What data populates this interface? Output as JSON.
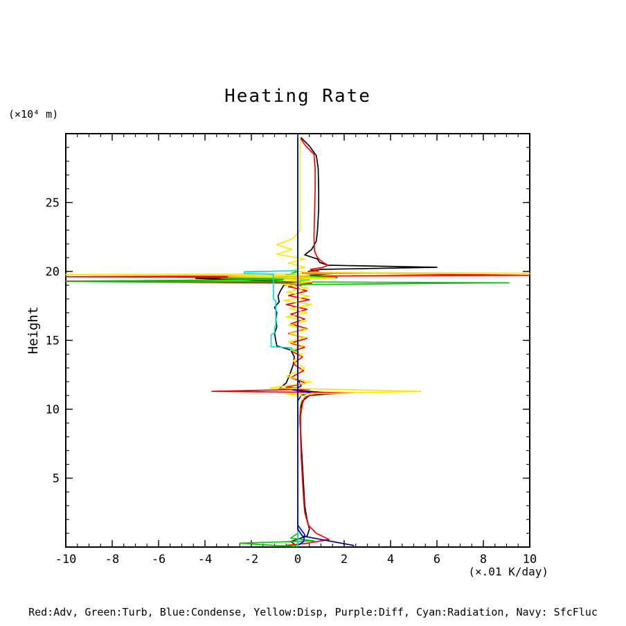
{
  "chart": {
    "title": "Heating Rate",
    "y_axis_units": "(×10⁴ m)",
    "y_axis_label": "Height",
    "x_axis_units": "(×.01 K/day)",
    "legend_text": "Red:Adv, Green:Turb, Blue:Condense, Yellow:Disp, Purple:Diff, Cyan:Radiation, Navy: SfcFluc"
  },
  "chart_data": {
    "type": "line",
    "title": "Heating Rate",
    "xlabel": "(×.01 K/day)",
    "ylabel": "Height (×10⁴ m)",
    "xlim": [
      -10,
      10
    ],
    "ylim": [
      0,
      30
    ],
    "x_major_ticks": [
      -10,
      -8,
      -6,
      -4,
      -2,
      0,
      2,
      4,
      6,
      8,
      10
    ],
    "x_minor_step": 0.5,
    "y_major_ticks": [
      5,
      10,
      15,
      20,
      25
    ],
    "y_minor_step": 1,
    "grid": false,
    "legend_position": "bottom-text-line",
    "note": "vertical profile plot: x = heating rate value, y = height",
    "series": [
      {
        "name": "black-unlabeled",
        "color": "#000000",
        "points": [
          [
            0.15,
            29.7
          ],
          [
            0.5,
            29.1
          ],
          [
            0.8,
            28.4
          ],
          [
            0.88,
            27.5
          ],
          [
            0.9,
            26
          ],
          [
            0.9,
            24.5
          ],
          [
            0.85,
            23
          ],
          [
            0.8,
            22.2
          ],
          [
            0.6,
            21.6
          ],
          [
            0.3,
            21.2
          ],
          [
            0.85,
            20.9
          ],
          [
            0.95,
            20.65
          ],
          [
            1.3,
            20.45
          ],
          [
            6.0,
            20.3
          ],
          [
            1.0,
            20.15
          ],
          [
            0.45,
            20.0
          ],
          [
            1.6,
            19.85
          ],
          [
            0.3,
            19.7
          ],
          [
            -4.4,
            19.5
          ],
          [
            -2.0,
            19.35
          ],
          [
            0.3,
            19.2
          ],
          [
            -0.6,
            19.0
          ],
          [
            -0.75,
            18.6
          ],
          [
            -0.85,
            18.2
          ],
          [
            -0.8,
            17.8
          ],
          [
            -1.0,
            17.4
          ],
          [
            -0.9,
            17.0
          ],
          [
            -0.95,
            16.5
          ],
          [
            -0.9,
            16.0
          ],
          [
            -1.0,
            15.5
          ],
          [
            -0.95,
            15.0
          ],
          [
            -0.9,
            14.6
          ],
          [
            -0.3,
            14.3
          ],
          [
            -0.15,
            13.8
          ],
          [
            -0.2,
            13.2
          ],
          [
            -0.35,
            12.5
          ],
          [
            -0.5,
            11.9
          ],
          [
            -0.8,
            11.5
          ],
          [
            0.5,
            11.3
          ],
          [
            1.6,
            11.15
          ],
          [
            0.5,
            11.0
          ],
          [
            0.2,
            10.6
          ],
          [
            0.1,
            10.0
          ],
          [
            0.1,
            9.0
          ],
          [
            0.15,
            7.5
          ],
          [
            0.2,
            6.0
          ],
          [
            0.25,
            4.5
          ],
          [
            0.3,
            3.0
          ],
          [
            0.4,
            2.0
          ],
          [
            0.5,
            1.3
          ],
          [
            0.4,
            0.8
          ],
          [
            -0.3,
            0.4
          ],
          [
            -0.1,
            0.15
          ]
        ]
      },
      {
        "name": "Adv",
        "color": "#ff0000",
        "points": [
          [
            0.1,
            29.7
          ],
          [
            0.35,
            29.1
          ],
          [
            0.7,
            28.5
          ],
          [
            0.75,
            27.5
          ],
          [
            0.75,
            26
          ],
          [
            0.72,
            24
          ],
          [
            0.7,
            22.5
          ],
          [
            0.72,
            21.5
          ],
          [
            0.85,
            21.0
          ],
          [
            1.05,
            20.7
          ],
          [
            1.3,
            20.45
          ],
          [
            1.1,
            20.3
          ],
          [
            0.55,
            20.15
          ],
          [
            0.9,
            20.0
          ],
          [
            0.2,
            19.9
          ],
          [
            10,
            19.72
          ],
          [
            -10,
            19.62
          ],
          [
            1.7,
            19.55
          ],
          [
            -0.5,
            19.42
          ],
          [
            -10,
            19.28
          ],
          [
            0.6,
            19.15
          ],
          [
            -0.4,
            18.9
          ],
          [
            0.4,
            18.6
          ],
          [
            -0.4,
            18.25
          ],
          [
            0.5,
            17.95
          ],
          [
            -0.5,
            17.6
          ],
          [
            0.4,
            17.25
          ],
          [
            -0.3,
            16.9
          ],
          [
            0.3,
            16.55
          ],
          [
            -0.3,
            16.2
          ],
          [
            0.4,
            15.85
          ],
          [
            -0.4,
            15.5
          ],
          [
            0.4,
            15.15
          ],
          [
            -0.3,
            14.8
          ],
          [
            0.3,
            14.5
          ],
          [
            -0.25,
            14.2
          ],
          [
            0.2,
            13.8
          ],
          [
            -0.2,
            13.3
          ],
          [
            0.25,
            12.8
          ],
          [
            -0.3,
            12.3
          ],
          [
            0.35,
            11.9
          ],
          [
            -0.5,
            11.6
          ],
          [
            0.5,
            11.45
          ],
          [
            -3.7,
            11.3
          ],
          [
            2.4,
            11.2
          ],
          [
            0.8,
            11.1
          ],
          [
            0.3,
            10.9
          ],
          [
            0.2,
            10.4
          ],
          [
            0.12,
            9.5
          ],
          [
            0.12,
            8.0
          ],
          [
            0.15,
            6.5
          ],
          [
            0.2,
            5.0
          ],
          [
            0.25,
            3.5
          ],
          [
            0.3,
            2.5
          ],
          [
            0.45,
            1.6
          ],
          [
            0.8,
            1.0
          ],
          [
            1.35,
            0.55
          ],
          [
            0.3,
            0.25
          ],
          [
            -0.5,
            0.12
          ]
        ]
      },
      {
        "name": "Turb",
        "color": "#00c800",
        "points": [
          [
            0,
            29.7
          ],
          [
            0,
            20.0
          ],
          [
            -0.5,
            19.75
          ],
          [
            1.7,
            19.58
          ],
          [
            -3.3,
            19.5
          ],
          [
            0.5,
            19.4
          ],
          [
            -10,
            19.3
          ],
          [
            9.1,
            19.18
          ],
          [
            0.2,
            19.05
          ],
          [
            0,
            18.8
          ],
          [
            0,
            1.0
          ],
          [
            -0.3,
            0.65
          ],
          [
            0.7,
            0.45
          ],
          [
            -2.5,
            0.28
          ],
          [
            -1.0,
            0.12
          ],
          [
            0,
            0.05
          ]
        ]
      },
      {
        "name": "Condense",
        "color": "#0000ff",
        "points": [
          [
            0,
            29.7
          ],
          [
            0,
            12.2
          ],
          [
            0.15,
            11.7
          ],
          [
            -0.2,
            11.4
          ],
          [
            0.55,
            11.2
          ],
          [
            0.15,
            11.0
          ],
          [
            0,
            10.6
          ],
          [
            0,
            1.6
          ],
          [
            0.3,
            0.9
          ],
          [
            0.25,
            0.4
          ],
          [
            0,
            0.12
          ]
        ]
      },
      {
        "name": "Disp",
        "color": "#ffe800",
        "points": [
          [
            0.1,
            29.7
          ],
          [
            0.1,
            23.0
          ],
          [
            -0.2,
            22.4
          ],
          [
            -0.9,
            21.95
          ],
          [
            -0.25,
            21.6
          ],
          [
            -0.9,
            21.25
          ],
          [
            0.3,
            20.9
          ],
          [
            -0.4,
            20.6
          ],
          [
            0.3,
            20.3
          ],
          [
            -0.2,
            20.1
          ],
          [
            0.25,
            19.95
          ],
          [
            10,
            19.87
          ],
          [
            -10,
            19.78
          ],
          [
            0.5,
            19.7
          ],
          [
            -3.0,
            19.62
          ],
          [
            1.6,
            19.52
          ],
          [
            -0.6,
            19.4
          ],
          [
            0.6,
            19.25
          ],
          [
            -0.6,
            19.05
          ],
          [
            0.45,
            18.8
          ],
          [
            -0.5,
            18.5
          ],
          [
            0.5,
            18.2
          ],
          [
            -0.6,
            17.9
          ],
          [
            0.6,
            17.6
          ],
          [
            -0.35,
            17.3
          ],
          [
            0.4,
            17.0
          ],
          [
            -0.5,
            16.7
          ],
          [
            0.35,
            16.4
          ],
          [
            -0.4,
            16.1
          ],
          [
            0.4,
            15.8
          ],
          [
            -0.35,
            15.5
          ],
          [
            0.35,
            15.2
          ],
          [
            -0.4,
            14.9
          ],
          [
            0.25,
            14.6
          ],
          [
            -0.3,
            14.3
          ],
          [
            0.2,
            14.0
          ],
          [
            -0.2,
            13.5
          ],
          [
            0.3,
            13.0
          ],
          [
            -0.5,
            12.4
          ],
          [
            0.6,
            11.95
          ],
          [
            -1.2,
            11.55
          ],
          [
            5.3,
            11.3
          ],
          [
            -0.5,
            11.1
          ],
          [
            0.3,
            10.95
          ],
          [
            0.1,
            10.5
          ],
          [
            0.05,
            9.5
          ],
          [
            0,
            8.0
          ],
          [
            0,
            0.1
          ]
        ]
      },
      {
        "name": "Diff",
        "color": "#a020f0",
        "points": [
          [
            0,
            29.7
          ],
          [
            0,
            0.1
          ]
        ]
      },
      {
        "name": "Radiation",
        "color": "#00dde0",
        "points": [
          [
            0,
            29.7
          ],
          [
            0,
            20.05
          ],
          [
            -2.3,
            19.98
          ],
          [
            -2.3,
            19.85
          ],
          [
            -1.05,
            19.8
          ],
          [
            -1.05,
            18.0
          ],
          [
            -0.95,
            17.85
          ],
          [
            -0.95,
            16.1
          ],
          [
            -1.0,
            15.95
          ],
          [
            -1.0,
            15.55
          ],
          [
            -1.15,
            15.4
          ],
          [
            -1.15,
            14.55
          ],
          [
            -0.25,
            14.45
          ],
          [
            -0.25,
            14.3
          ],
          [
            0,
            14.2
          ],
          [
            0,
            0.1
          ]
        ]
      },
      {
        "name": "SfcFluc",
        "color": "#000080",
        "points": [
          [
            0,
            29.7
          ],
          [
            0,
            1.3
          ],
          [
            0.2,
            0.8
          ],
          [
            2.4,
            0.12
          ],
          [
            2.4,
            0.05
          ]
        ]
      }
    ]
  }
}
